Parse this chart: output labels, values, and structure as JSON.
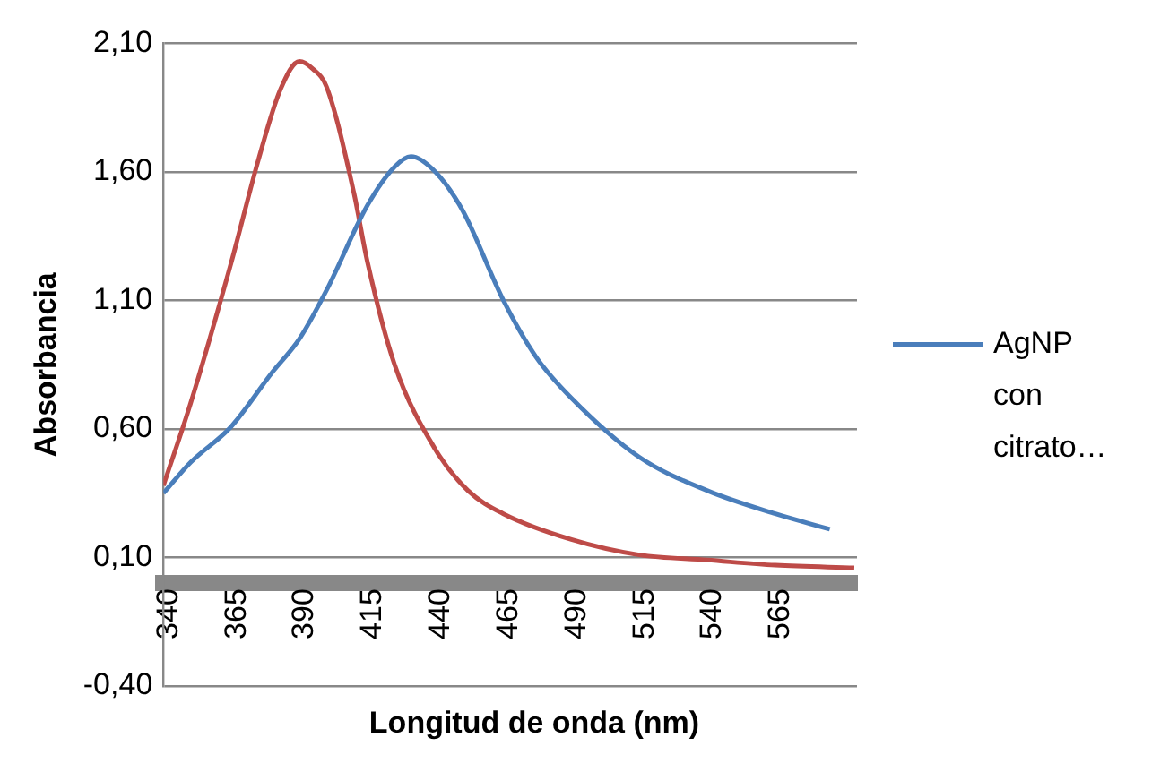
{
  "chart_data": {
    "type": "line",
    "xlabel": "Longitud de onda (nm)",
    "ylabel": "Absorbancia",
    "xlim": [
      340,
      595
    ],
    "xticks": [
      340,
      365,
      390,
      415,
      440,
      465,
      490,
      515,
      540,
      565
    ],
    "ylim": [
      -0.4,
      2.1
    ],
    "yticks": [
      {
        "value": -0.4,
        "label": "-0,40"
      },
      {
        "value": 0.1,
        "label": "0,10"
      },
      {
        "value": 0.6,
        "label": "0,60"
      },
      {
        "value": 1.1,
        "label": "1,10"
      },
      {
        "value": 1.6,
        "label": "1,60"
      },
      {
        "value": 2.1,
        "label": "2,10"
      }
    ],
    "grid": "y",
    "legend": "right",
    "marker": "none",
    "series": [
      {
        "name": "AgNP con citrato…",
        "color": "#4a7ebb",
        "x": [
          340,
          350,
          365,
          380,
          390,
          400,
          415,
          425,
          431,
          440,
          450,
          465,
          477,
          490,
          515,
          540,
          565,
          585
        ],
        "values": [
          0.35,
          0.47,
          0.61,
          0.82,
          0.95,
          1.14,
          1.47,
          1.62,
          1.66,
          1.6,
          1.45,
          1.1,
          0.88,
          0.72,
          0.49,
          0.36,
          0.27,
          0.21
        ]
      },
      {
        "color": "#be4b48",
        "x": [
          340,
          350,
          365,
          375,
          383,
          390,
          395,
          400,
          410,
          415,
          425,
          440,
          452,
          465,
          490,
          515,
          540,
          565,
          594
        ],
        "values": [
          0.38,
          0.7,
          1.25,
          1.65,
          1.92,
          2.03,
          2.0,
          1.93,
          1.52,
          1.25,
          0.85,
          0.52,
          0.36,
          0.27,
          0.17,
          0.11,
          0.09,
          0.07,
          0.06
        ]
      }
    ]
  }
}
